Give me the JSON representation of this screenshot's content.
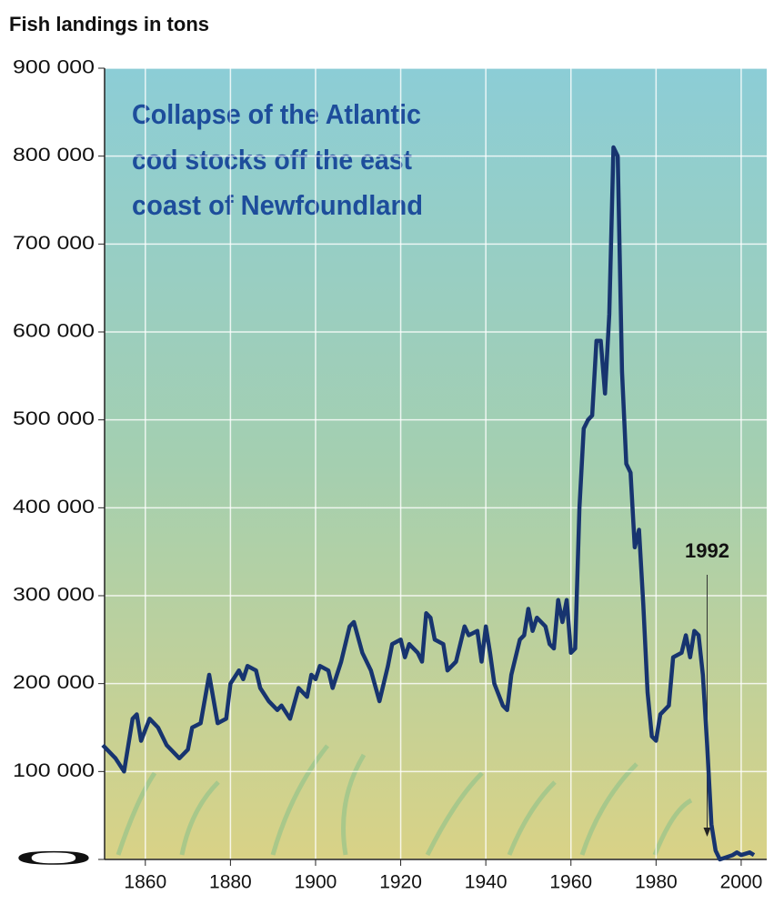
{
  "chart_data": {
    "type": "line",
    "title": "Fish landings in tons",
    "annotation_lines": [
      "Collapse of the Atlantic",
      "cod stocks off the east",
      "coast of Newfoundland"
    ],
    "marker_year": 1992,
    "x": [
      1850,
      1853,
      1855,
      1857,
      1858,
      1859,
      1861,
      1863,
      1865,
      1868,
      1870,
      1871,
      1873,
      1875,
      1877,
      1879,
      1880,
      1882,
      1883,
      1884,
      1886,
      1887,
      1889,
      1891,
      1892,
      1894,
      1896,
      1898,
      1899,
      1900,
      1901,
      1903,
      1904,
      1906,
      1908,
      1909,
      1911,
      1913,
      1915,
      1917,
      1918,
      1920,
      1921,
      1922,
      1924,
      1925,
      1926,
      1927,
      1928,
      1930,
      1931,
      1933,
      1935,
      1936,
      1938,
      1939,
      1940,
      1941,
      1942,
      1944,
      1945,
      1946,
      1948,
      1949,
      1950,
      1951,
      1952,
      1954,
      1955,
      1956,
      1957,
      1958,
      1959,
      1960,
      1961,
      1962,
      1963,
      1964,
      1965,
      1966,
      1967,
      1968,
      1969,
      1970,
      1971,
      1972,
      1973,
      1974,
      1975,
      1976,
      1977,
      1978,
      1979,
      1980,
      1981,
      1982,
      1983,
      1984,
      1986,
      1987,
      1988,
      1989,
      1990,
      1991,
      1992,
      1993,
      1994,
      1995,
      1998,
      1999,
      2000,
      2002,
      2003
    ],
    "series": [
      {
        "name": "Landings",
        "color": "#17346f",
        "values": [
          130000,
          115000,
          100000,
          160000,
          165000,
          135000,
          160000,
          150000,
          130000,
          115000,
          125000,
          150000,
          155000,
          210000,
          155000,
          160000,
          200000,
          215000,
          205000,
          220000,
          215000,
          195000,
          180000,
          170000,
          175000,
          160000,
          195000,
          185000,
          210000,
          205000,
          220000,
          215000,
          195000,
          225000,
          265000,
          270000,
          235000,
          215000,
          180000,
          220000,
          245000,
          250000,
          230000,
          245000,
          235000,
          225000,
          280000,
          275000,
          250000,
          245000,
          215000,
          225000,
          265000,
          255000,
          260000,
          225000,
          265000,
          235000,
          200000,
          175000,
          170000,
          210000,
          250000,
          255000,
          285000,
          260000,
          275000,
          265000,
          245000,
          240000,
          295000,
          270000,
          295000,
          235000,
          240000,
          400000,
          490000,
          500000,
          505000,
          590000,
          590000,
          530000,
          620000,
          810000,
          800000,
          555000,
          450000,
          440000,
          355000,
          375000,
          290000,
          190000,
          140000,
          135000,
          165000,
          170000,
          175000,
          230000,
          235000,
          255000,
          230000,
          260000,
          255000,
          210000,
          130000,
          40000,
          10000,
          0,
          5000,
          8000,
          5000,
          8000,
          5000
        ]
      }
    ],
    "xlim": [
      1850,
      2006
    ],
    "ylim": [
      0,
      900000
    ],
    "xticks": [
      1860,
      1880,
      1900,
      1920,
      1940,
      1960,
      1980,
      2000
    ],
    "yticks": [
      0,
      {
        "value": 100000,
        "label": "100 000"
      },
      {
        "value": 200000,
        "label": "200 000"
      },
      {
        "value": 300000,
        "label": "300 000"
      },
      {
        "value": 400000,
        "label": "400 000"
      },
      {
        "value": 500000,
        "label": "500 000"
      },
      {
        "value": 600000,
        "label": "600 000"
      },
      {
        "value": 700000,
        "label": "700 000"
      },
      {
        "value": 800000,
        "label": "800 000"
      },
      {
        "value": 900000,
        "label": "900 000"
      }
    ],
    "grid": true
  }
}
